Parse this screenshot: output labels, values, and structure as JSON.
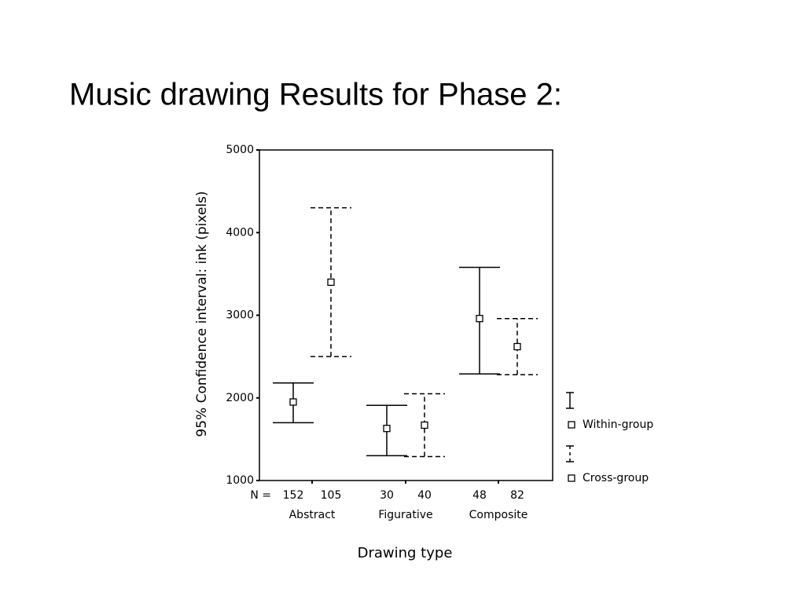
{
  "chart_data": {
    "type": "errorbar",
    "title": "Music drawing Results for Phase 2:",
    "ylabel": "95% Confidence interval:  ink (pixels)",
    "xlabel": "Drawing type",
    "categories": [
      "Abstract",
      "Figurative",
      "Composite"
    ],
    "n_label": "N =",
    "ylim": [
      1000,
      5000
    ],
    "yticks": [
      1000,
      2000,
      3000,
      4000,
      5000
    ],
    "series": [
      {
        "name": "Within-group",
        "line_style": "solid",
        "color": "#000000",
        "n": [
          152,
          30,
          48
        ],
        "values": [
          1950,
          1630,
          2960
        ],
        "low": [
          1700,
          1300,
          2290
        ],
        "high": [
          2180,
          1910,
          3580
        ]
      },
      {
        "name": "Cross-group",
        "line_style": "dashed",
        "color": "#000000",
        "n": [
          105,
          40,
          82
        ],
        "values": [
          3400,
          1670,
          2620
        ],
        "low": [
          2500,
          1290,
          2280
        ],
        "high": [
          4300,
          2050,
          2960
        ]
      }
    ]
  }
}
